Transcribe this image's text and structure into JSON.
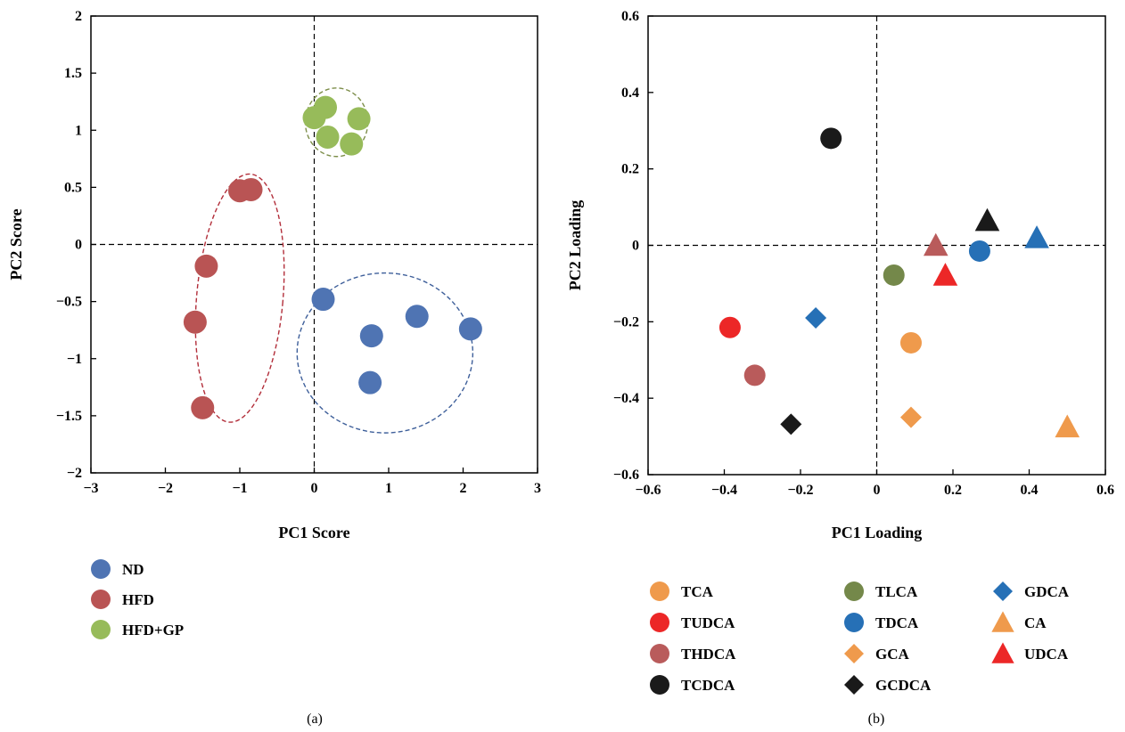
{
  "chart_data": [
    {
      "type": "scatter",
      "panel_label": "(a)",
      "xlabel": "PC1 Score",
      "ylabel": "PC2 Score",
      "xlim": [
        -3,
        3
      ],
      "ylim": [
        -2,
        2
      ],
      "xticks": [
        -3,
        -2,
        -1,
        0,
        1,
        2,
        3
      ],
      "yticks": [
        -2,
        -1.5,
        -1,
        -0.5,
        0,
        0.5,
        1,
        1.5,
        2
      ],
      "xtick_labels": [
        "−3",
        "−2",
        "−1",
        "0",
        "1",
        "2",
        "3"
      ],
      "ytick_labels": [
        "−2",
        "−1.5",
        "−1",
        "−0.5",
        "0",
        "0.5",
        "1",
        "1.5",
        "2"
      ],
      "reference_lines": {
        "x": 0,
        "y": 0,
        "style": "dashed"
      },
      "legend": "bottom",
      "series": [
        {
          "name": "ND",
          "color": "#4f74b3",
          "marker": "circle",
          "points": [
            [
              0.12,
              -0.48
            ],
            [
              0.77,
              -0.8
            ],
            [
              1.38,
              -0.63
            ],
            [
              2.1,
              -0.74
            ],
            [
              0.75,
              -1.21
            ]
          ],
          "ellipse": {
            "cx": 0.95,
            "cy": -0.95,
            "rx": 1.18,
            "ry": 0.7,
            "angle": 0,
            "color": "#3e5f9a"
          }
        },
        {
          "name": "HFD",
          "color": "#b95454",
          "marker": "circle",
          "points": [
            [
              -1.0,
              0.47
            ],
            [
              -0.85,
              0.48
            ],
            [
              -1.45,
              -0.19
            ],
            [
              -1.6,
              -0.68
            ],
            [
              -1.5,
              -1.43
            ]
          ],
          "ellipse": {
            "cx": -1.0,
            "cy": -0.47,
            "rx": 0.58,
            "ry": 1.09,
            "angle": 5,
            "color": "#b22e3a"
          }
        },
        {
          "name": "HFD+GP",
          "color": "#97bb5a",
          "marker": "circle",
          "points": [
            [
              0.0,
              1.11
            ],
            [
              0.15,
              1.2
            ],
            [
              0.6,
              1.1
            ],
            [
              0.18,
              0.94
            ],
            [
              0.5,
              0.88
            ]
          ],
          "ellipse": {
            "cx": 0.3,
            "cy": 1.07,
            "rx": 0.42,
            "ry": 0.3,
            "angle": 0,
            "color": "#7d8e4a"
          }
        }
      ]
    },
    {
      "type": "scatter",
      "panel_label": "(b)",
      "xlabel": "PC1 Loading",
      "ylabel": "PC2 Loading",
      "xlim": [
        -0.6,
        0.6
      ],
      "ylim": [
        -0.6,
        0.6
      ],
      "xticks": [
        -0.6,
        -0.4,
        -0.2,
        0,
        0.2,
        0.4,
        0.6
      ],
      "yticks": [
        -0.6,
        -0.4,
        -0.2,
        0,
        0.2,
        0.4,
        0.6
      ],
      "xtick_labels": [
        "−0.6",
        "−0.4",
        "−0.2",
        "0",
        "0.2",
        "0.4",
        "0.6"
      ],
      "ytick_labels": [
        "−0.6",
        "−0.4",
        "−0.2",
        "0",
        "0.2",
        "0.4",
        "0.6"
      ],
      "reference_lines": {
        "x": 0,
        "y": 0,
        "style": "dashed"
      },
      "legend": "bottom",
      "series": [
        {
          "name": "TCA",
          "color": "#ef9a4c",
          "marker": "circle",
          "points": [
            [
              0.09,
              -0.255
            ]
          ]
        },
        {
          "name": "TUDCA",
          "color": "#ec2727",
          "marker": "circle",
          "points": [
            [
              -0.385,
              -0.215
            ]
          ]
        },
        {
          "name": "THDCA",
          "color": "#b95b5b",
          "marker": "circle",
          "points": [
            [
              -0.32,
              -0.34
            ]
          ]
        },
        {
          "name": "TCDCA",
          "color": "#1a1a1a",
          "marker": "circle",
          "points": [
            [
              -0.12,
              0.28
            ]
          ]
        },
        {
          "name": "TLCA",
          "color": "#74884a",
          "marker": "circle",
          "points": [
            [
              0.045,
              -0.078
            ]
          ]
        },
        {
          "name": "TDCA",
          "color": "#2670b6",
          "marker": "circle",
          "points": [
            [
              0.27,
              -0.015
            ]
          ]
        },
        {
          "name": "GCA",
          "color": "#ef9a4c",
          "marker": "diamond",
          "points": [
            [
              0.09,
              -0.45
            ]
          ]
        },
        {
          "name": "GCDCA",
          "color": "#1a1a1a",
          "marker": "diamond",
          "points": [
            [
              -0.225,
              -0.468
            ]
          ]
        },
        {
          "name": "GDCA",
          "color": "#2670b6",
          "marker": "diamond",
          "points": [
            [
              -0.16,
              -0.19
            ]
          ]
        },
        {
          "name": "CA",
          "color": "#ef9a4c",
          "marker": "triangle",
          "points": [
            [
              0.5,
              -0.475
            ]
          ]
        },
        {
          "name": "UDCA",
          "color": "#ec2727",
          "marker": "triangle",
          "points": [
            [
              0.18,
              -0.078
            ]
          ]
        },
        {
          "name": "_unlabeled_tri_1",
          "color": "#b95b5b",
          "marker": "triangle",
          "points": [
            [
              0.155,
              0.0
            ]
          ],
          "legend": false
        },
        {
          "name": "_unlabeled_tri_2",
          "color": "#1a1a1a",
          "marker": "triangle",
          "points": [
            [
              0.29,
              0.065
            ]
          ],
          "legend": false
        },
        {
          "name": "_unlabeled_tri_3",
          "color": "#2670b6",
          "marker": "triangle",
          "points": [
            [
              0.42,
              0.02
            ]
          ],
          "legend": false
        }
      ]
    }
  ]
}
